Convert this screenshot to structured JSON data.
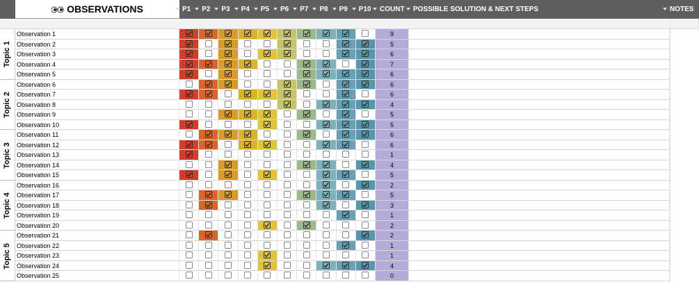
{
  "header": {
    "title": "OBSERVATIONS",
    "participants": [
      "P1",
      "P2",
      "P3",
      "P4",
      "P5",
      "P6",
      "P7",
      "P8",
      "P9",
      "P10"
    ],
    "count": "COUNT",
    "solution": "POSSIBLE SOLUTION & NEXT STEPS",
    "notes": "NOTES"
  },
  "topics": [
    "Topic 1",
    "Topic 2",
    "Topic 3",
    "Topic 4",
    "Topic 5"
  ],
  "participant_colors": [
    "#d63c2a",
    "#d9652a",
    "#d99c2c",
    "#d8b42e",
    "#e1c43d",
    "#c8c468",
    "#9db98c",
    "#7fb1bb",
    "#68a1b6",
    "#5896ae"
  ],
  "count_color": "#b4abd8",
  "rows": [
    {
      "label": "Observation 1",
      "checks": [
        true,
        true,
        true,
        true,
        true,
        true,
        true,
        true,
        true,
        false
      ],
      "count": 9
    },
    {
      "label": "Observation 2",
      "checks": [
        true,
        false,
        true,
        false,
        false,
        true,
        false,
        false,
        true,
        true
      ],
      "count": 5
    },
    {
      "label": "Observation 3",
      "checks": [
        true,
        false,
        true,
        false,
        true,
        true,
        false,
        false,
        true,
        true
      ],
      "count": 6
    },
    {
      "label": "Observation 4",
      "checks": [
        true,
        true,
        true,
        true,
        false,
        false,
        true,
        true,
        false,
        true
      ],
      "count": 7
    },
    {
      "label": "Observation 5",
      "checks": [
        true,
        false,
        true,
        false,
        false,
        false,
        true,
        true,
        true,
        true
      ],
      "count": 6
    },
    {
      "label": "Observation 6",
      "checks": [
        false,
        true,
        true,
        false,
        false,
        true,
        true,
        false,
        true,
        true
      ],
      "count": 6
    },
    {
      "label": "Observation 7",
      "checks": [
        true,
        true,
        false,
        true,
        true,
        true,
        false,
        false,
        true,
        false
      ],
      "count": 6
    },
    {
      "label": "Observation 8",
      "checks": [
        false,
        false,
        false,
        false,
        false,
        true,
        false,
        true,
        true,
        true
      ],
      "count": 4
    },
    {
      "label": "Observation 9",
      "checks": [
        false,
        false,
        true,
        true,
        true,
        false,
        true,
        false,
        true,
        false
      ],
      "count": 5
    },
    {
      "label": "Observation 10",
      "checks": [
        true,
        false,
        false,
        false,
        true,
        false,
        false,
        true,
        true,
        true
      ],
      "count": 5
    },
    {
      "label": "Observation 11",
      "checks": [
        false,
        true,
        true,
        true,
        false,
        false,
        true,
        false,
        true,
        true
      ],
      "count": 6
    },
    {
      "label": "Observation 12",
      "checks": [
        true,
        true,
        false,
        true,
        true,
        false,
        false,
        true,
        true,
        false
      ],
      "count": 6
    },
    {
      "label": "Observation 13",
      "checks": [
        true,
        false,
        false,
        false,
        false,
        false,
        false,
        false,
        false,
        false
      ],
      "count": 1
    },
    {
      "label": "Observation 14",
      "checks": [
        false,
        false,
        true,
        false,
        false,
        false,
        true,
        true,
        false,
        true
      ],
      "count": 4
    },
    {
      "label": "Observation 15",
      "checks": [
        true,
        false,
        true,
        false,
        true,
        false,
        false,
        true,
        true,
        false
      ],
      "count": 5
    },
    {
      "label": "Observation 16",
      "checks": [
        false,
        false,
        false,
        false,
        false,
        false,
        false,
        true,
        false,
        true
      ],
      "count": 2
    },
    {
      "label": "Observation 17",
      "checks": [
        false,
        true,
        true,
        false,
        false,
        false,
        true,
        true,
        true,
        false
      ],
      "count": 5
    },
    {
      "label": "Observation 18",
      "checks": [
        false,
        true,
        false,
        false,
        false,
        false,
        false,
        true,
        false,
        true
      ],
      "count": 3
    },
    {
      "label": "Observation 19",
      "checks": [
        false,
        false,
        false,
        false,
        false,
        false,
        false,
        false,
        true,
        false
      ],
      "count": 1
    },
    {
      "label": "Observation 20",
      "checks": [
        false,
        false,
        false,
        false,
        true,
        false,
        true,
        false,
        false,
        false
      ],
      "count": 2
    },
    {
      "label": "Observation 21",
      "checks": [
        false,
        true,
        false,
        false,
        false,
        false,
        false,
        false,
        false,
        true
      ],
      "count": 2
    },
    {
      "label": "Observation 22",
      "checks": [
        false,
        false,
        false,
        false,
        false,
        false,
        false,
        false,
        true,
        false
      ],
      "count": 1
    },
    {
      "label": "Observation 23",
      "checks": [
        false,
        false,
        false,
        false,
        true,
        false,
        false,
        false,
        false,
        false
      ],
      "count": 1
    },
    {
      "label": "Observation 24",
      "checks": [
        false,
        false,
        false,
        false,
        true,
        false,
        false,
        true,
        true,
        true
      ],
      "count": 4
    },
    {
      "label": "Observation 25",
      "checks": [
        false,
        false,
        false,
        false,
        false,
        false,
        false,
        false,
        false,
        false
      ],
      "count": 0
    }
  ]
}
